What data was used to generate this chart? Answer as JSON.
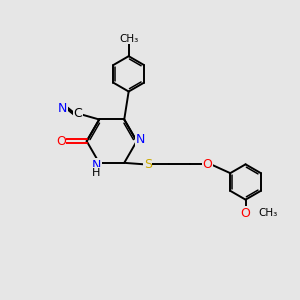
{
  "bg_color": "#e6e6e6",
  "bond_color": "#000000",
  "N_color": "#0000ff",
  "O_color": "#ff0000",
  "S_color": "#ccaa00",
  "fig_size": [
    3.0,
    3.0
  ],
  "dpi": 100,
  "xlim": [
    0,
    10
  ],
  "ylim": [
    0,
    10
  ]
}
